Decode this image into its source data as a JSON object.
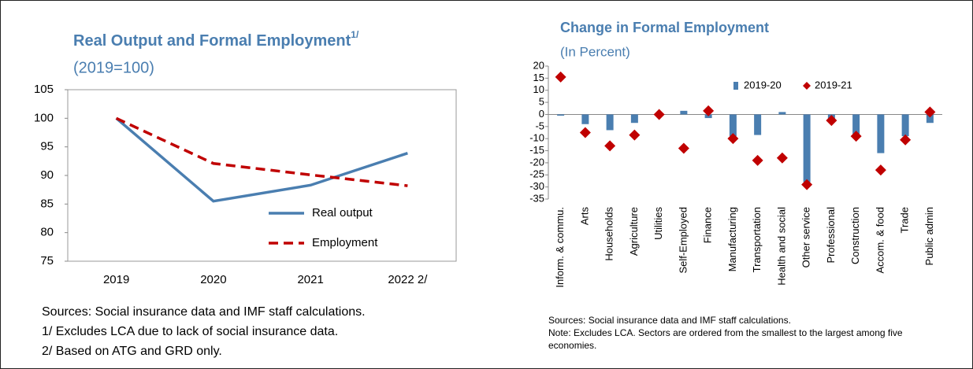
{
  "chart_data": [
    {
      "type": "line",
      "title": "Real Output and Formal Employment",
      "title_superscript": "1/",
      "subtitle": "(2019=100)",
      "categories": [
        "2019",
        "2020",
        "2021",
        "2022 2/"
      ],
      "series": [
        {
          "name": "Real output",
          "color": "#4a7eb0",
          "values": [
            100,
            85.5,
            88.3,
            93.9
          ]
        },
        {
          "name": "Employment",
          "color": "#c00000",
          "dash": true,
          "values": [
            100,
            92.1,
            90.1,
            88.2
          ]
        }
      ],
      "ylim": [
        75,
        105
      ],
      "yticks": [
        75,
        80,
        85,
        90,
        95,
        100,
        105
      ],
      "legend": "lower-right",
      "notes": [
        "Sources: Social insurance data and IMF staff calculations.",
        "1/ Excludes LCA due to lack of social insurance data.",
        "2/ Based on ATG and GRD only."
      ]
    },
    {
      "type": "bar",
      "title": "Change in Formal Employment",
      "subtitle": "(In Percent)",
      "categories": [
        "Inform. & commu.",
        "Arts",
        "Households",
        "Agriculture",
        "Utilities",
        "Self-Employed",
        "Finance",
        "Manufacturing",
        "Transportation",
        "Health and social",
        "Other service",
        "Professional",
        "Construction",
        "Accom. & food",
        "Trade",
        "Public admin"
      ],
      "series": [
        {
          "name": "2019-20",
          "type": "bar",
          "color": "#4a7eb0",
          "values": [
            -0.5,
            -4,
            -6.5,
            -3.5,
            0,
            1.5,
            -1.5,
            -9,
            -8.5,
            1,
            -28,
            -2,
            -8.5,
            -16,
            -9,
            -3.5
          ]
        },
        {
          "name": "2019-21",
          "type": "scatter",
          "color": "#c00000",
          "values": [
            15.5,
            -7.5,
            -13,
            -8.5,
            0,
            -14,
            1.5,
            -10,
            -19,
            -18,
            -29,
            -2.5,
            -9,
            -23,
            -10.5,
            1
          ]
        }
      ],
      "ylim": [
        -35,
        20
      ],
      "yticks": [
        -35,
        -30,
        -25,
        -20,
        -15,
        -10,
        -5,
        0,
        5,
        10,
        15,
        20
      ],
      "legend": "upper-center",
      "notes": [
        "Sources: Social insurance data and IMF staff calculations.",
        "Note: Excludes LCA. Sectors are ordered from the smallest to the largest among five economies."
      ]
    }
  ]
}
